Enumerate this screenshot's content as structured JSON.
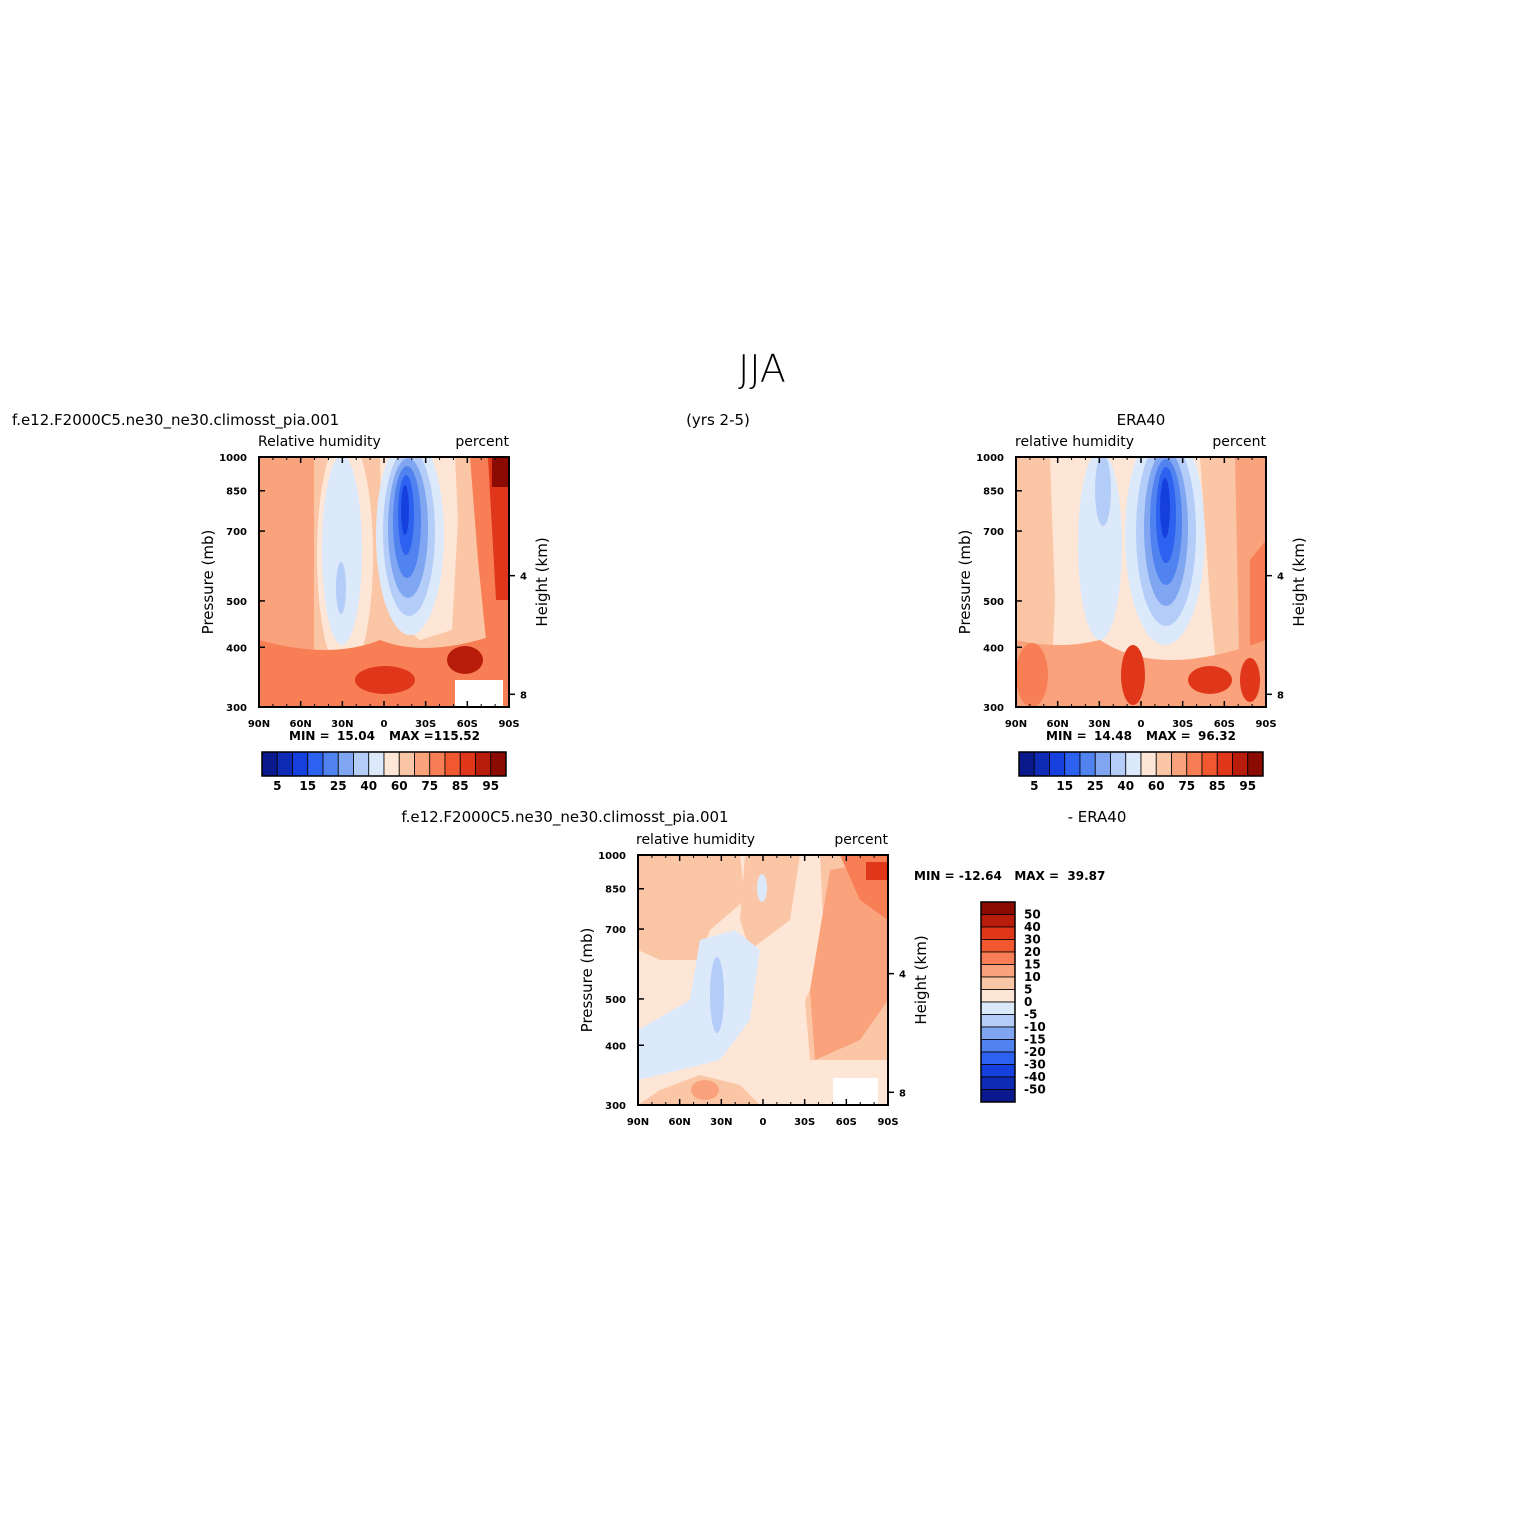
{
  "figure": {
    "title": "JJA",
    "case_name": "f.e12.F2000C5.ne30_ne30.climosst_pia.001",
    "years": "(yrs 2-5)",
    "obs_name": "ERA40",
    "diff_left": "f.e12.F2000C5.ne30_ne30.climosst_pia.001",
    "diff_right": "- ERA40"
  },
  "chart_data": [
    {
      "id": "model",
      "type": "heatmap",
      "title_left": "Relative humidity",
      "title_right": "percent",
      "xlabel": "",
      "ylabel": "Pressure (mb)",
      "ylabel_right": "Height (km)",
      "x_ticks": [
        "90N",
        "60N",
        "30N",
        "0",
        "30S",
        "60S",
        "90S"
      ],
      "y_ticks": [
        "300",
        "400",
        "500",
        "700",
        "850",
        "1000"
      ],
      "y_ticks_right": [
        "8",
        "4"
      ],
      "x_range": [
        90,
        -90
      ],
      "y_range": [
        1000,
        300
      ],
      "y_scale": "log",
      "min_label": "MIN =",
      "min": "15.04",
      "max_label": "MAX =",
      "max": "115.52",
      "colorbar_ticks": [
        "5",
        "15",
        "25",
        "40",
        "60",
        "75",
        "85",
        "95"
      ],
      "colorbar_orientation": "horizontal"
    },
    {
      "id": "obs",
      "type": "heatmap",
      "title_left": "relative humidity",
      "title_right": "percent",
      "xlabel": "",
      "ylabel": "Pressure (mb)",
      "ylabel_right": "Height (km)",
      "x_ticks": [
        "90N",
        "60N",
        "30N",
        "0",
        "30S",
        "60S",
        "90S"
      ],
      "y_ticks": [
        "300",
        "400",
        "500",
        "700",
        "850",
        "1000"
      ],
      "y_ticks_right": [
        "8",
        "4"
      ],
      "x_range": [
        90,
        -90
      ],
      "y_range": [
        1000,
        300
      ],
      "y_scale": "log",
      "min_label": "MIN =",
      "min": "14.48",
      "max_label": "MAX =",
      "max": "96.32",
      "colorbar_ticks": [
        "5",
        "15",
        "25",
        "40",
        "60",
        "75",
        "85",
        "95"
      ],
      "colorbar_orientation": "horizontal"
    },
    {
      "id": "diff",
      "type": "heatmap",
      "title_left": "relative humidity",
      "title_right": "percent",
      "xlabel": "",
      "ylabel": "Pressure (mb)",
      "ylabel_right": "Height (km)",
      "x_ticks": [
        "90N",
        "60N",
        "30N",
        "0",
        "30S",
        "60S",
        "90S"
      ],
      "y_ticks": [
        "300",
        "400",
        "500",
        "700",
        "850",
        "1000"
      ],
      "y_ticks_right": [
        "8",
        "4"
      ],
      "x_range": [
        90,
        -90
      ],
      "y_range": [
        1000,
        300
      ],
      "y_scale": "log",
      "minmax_text": "MIN = -12.64   MAX =  39.87",
      "colorbar_ticks": [
        "50",
        "40",
        "30",
        "20",
        "15",
        "10",
        "5",
        "0",
        "-5",
        "-10",
        "-15",
        "-20",
        "-30",
        "-40",
        "-50"
      ],
      "colorbar_orientation": "vertical"
    }
  ],
  "colors": {
    "abs_scale": [
      "#0a1a8c",
      "#0d2bb5",
      "#1540dd",
      "#2c62ef",
      "#5183f0",
      "#80a6f2",
      "#b4cdf8",
      "#dce9fb",
      "#fde6d6",
      "#fbc6a6",
      "#f9a27c",
      "#f77e55",
      "#f2582f",
      "#e0361a",
      "#b81c0b",
      "#8b0b02"
    ],
    "diff_scale": [
      "#8b0b02",
      "#b81c0b",
      "#e0361a",
      "#f2582f",
      "#f77e55",
      "#f9a27c",
      "#fbc6a6",
      "#fde6d6",
      "#dce9fb",
      "#b4cdf8",
      "#80a6f2",
      "#5183f0",
      "#2c62ef",
      "#1540dd",
      "#0d2bb5",
      "#0a1a8c"
    ]
  }
}
